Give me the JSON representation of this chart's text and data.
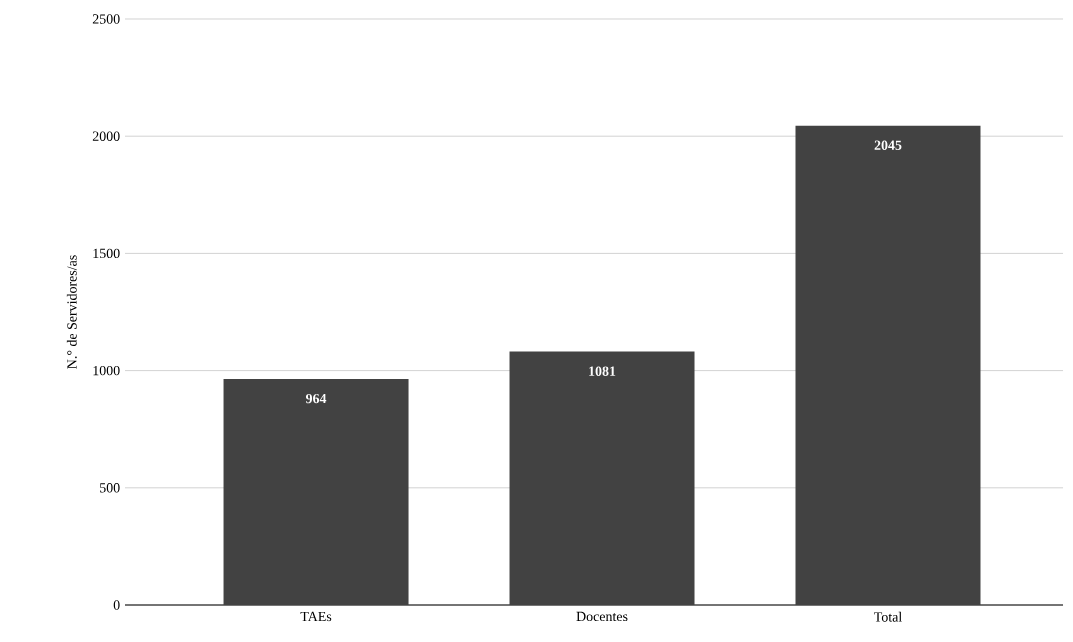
{
  "chart_data": {
    "type": "bar",
    "ylabel": "N.° de Servidores/as",
    "categories": [
      "TAEs",
      "Docentes",
      "Total"
    ],
    "values": [
      964,
      1081,
      2045
    ],
    "color": "#424242",
    "ylim": [
      0,
      2500
    ],
    "yticks": [
      0,
      500,
      1000,
      1500,
      2000,
      2500
    ],
    "grid": "y",
    "data_labels": true
  }
}
